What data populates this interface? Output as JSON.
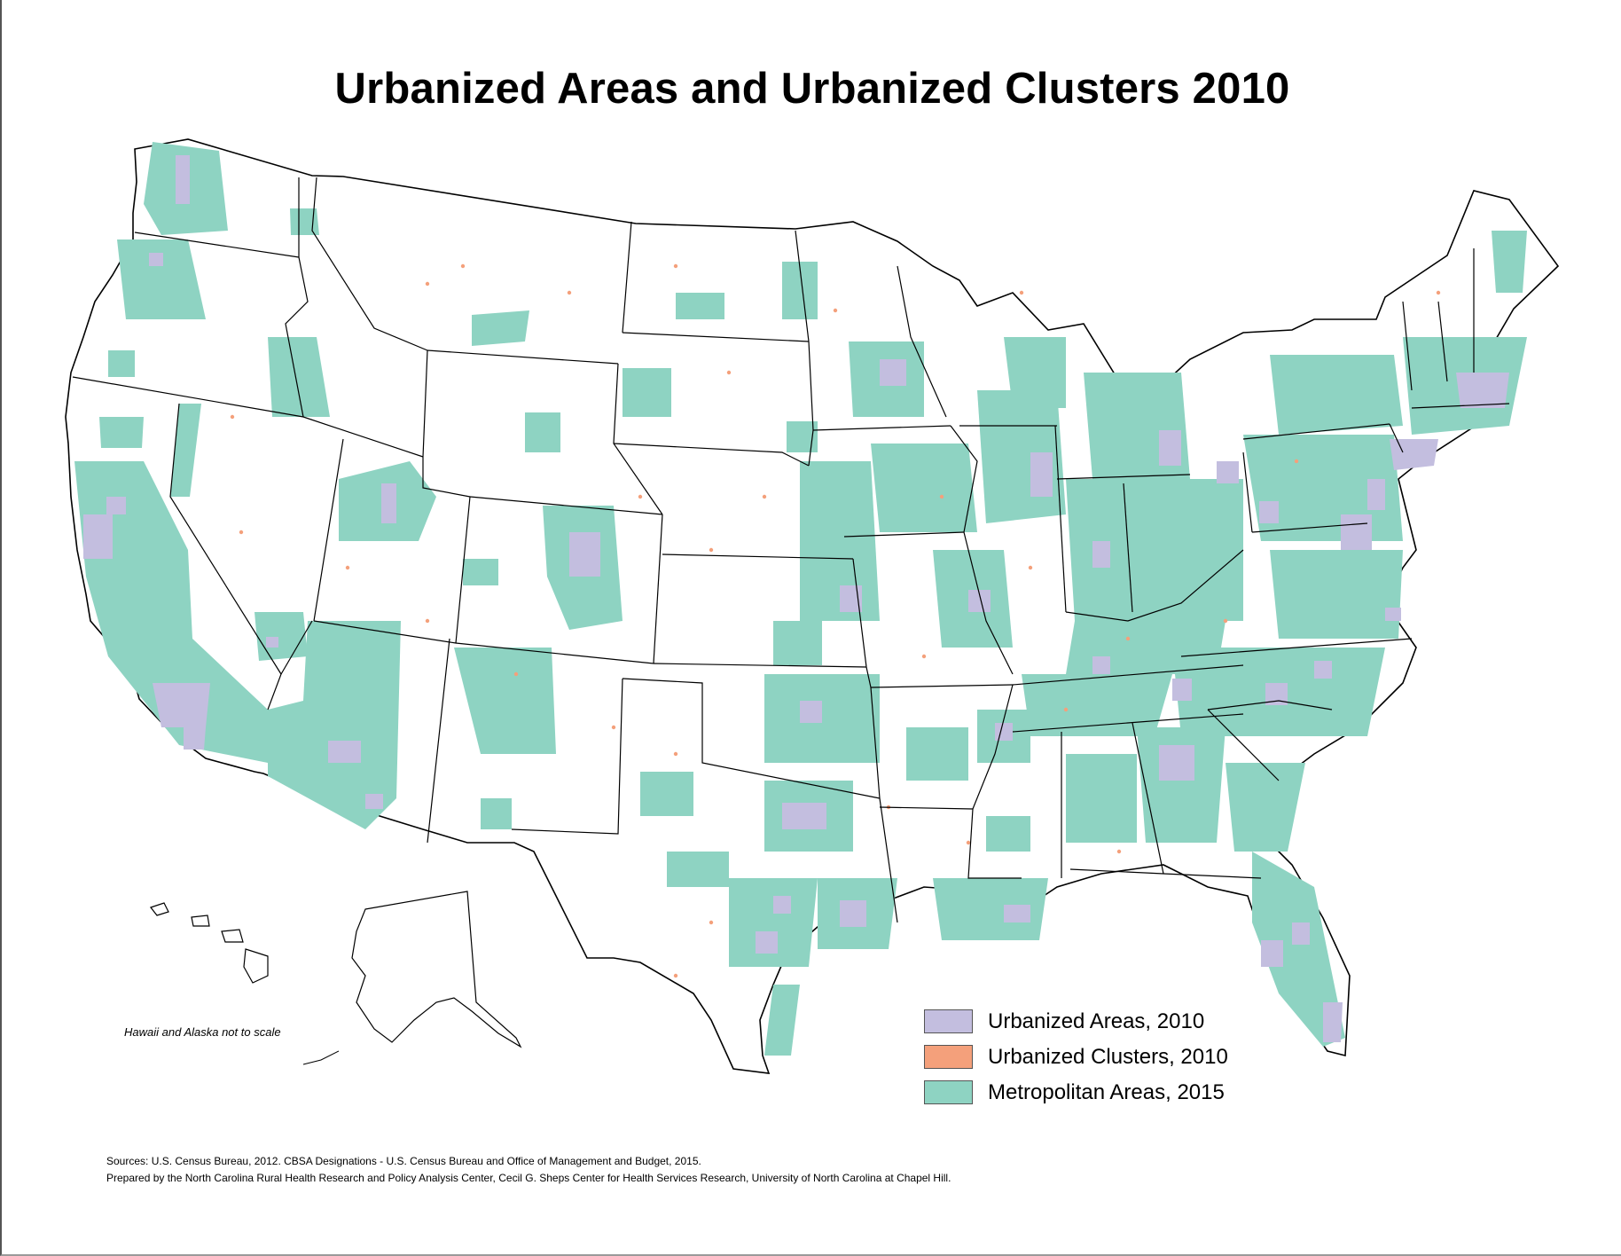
{
  "title": "Urbanized Areas and Urbanized Clusters 2010",
  "inset_note": "Hawaii and Alaska not to scale",
  "colors": {
    "urbanized_area": "#c3bedf",
    "urbanized_cluster": "#f4a07b",
    "metropolitan_area": "#8ed3c2",
    "state_border": "#000000",
    "land": "#ffffff"
  },
  "legend": [
    {
      "label": "Urbanized Areas, 2010",
      "color": "#c3bedf"
    },
    {
      "label": "Urbanized Clusters, 2010",
      "color": "#f4a07b"
    },
    {
      "label": "Metropolitan Areas, 2015",
      "color": "#8ed3c2"
    }
  ],
  "sources": {
    "line1": "Sources: U.S. Census Bureau, 2012. CBSA Designations - U.S. Census Bureau and Office of Management and Budget, 2015.",
    "line2": "Prepared by the North Carolina Rural Health Research and Policy Analysis Center, Cecil G. Sheps Center for Health Services Research, University of North Carolina at Chapel Hill."
  }
}
